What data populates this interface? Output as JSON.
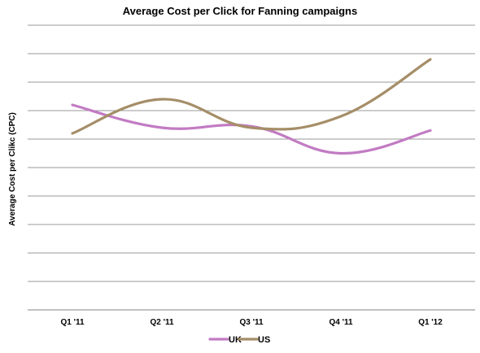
{
  "chart_data": {
    "type": "line",
    "title": "Average Cost per Click for Fanning campaigns",
    "xlabel": "",
    "ylabel": "Average Cost per Clikc (CPC)",
    "categories": [
      "Q1 '11",
      "Q2 '11",
      "Q3 '11",
      "Q4 '11",
      "Q1 '12"
    ],
    "ylim": [
      0,
      10
    ],
    "y_tick_labels_shown": false,
    "grid": "horizontal",
    "smooth": true,
    "legend": "bottom",
    "series": [
      {
        "name": "UK",
        "color": "#c27bc3",
        "values": [
          7.2,
          6.4,
          6.45,
          5.5,
          6.3
        ]
      },
      {
        "name": "US",
        "color": "#a58e68",
        "values": [
          6.2,
          7.4,
          6.4,
          6.8,
          8.8
        ]
      }
    ]
  },
  "colors": {
    "grid": "#999999",
    "axis": "#808080"
  }
}
